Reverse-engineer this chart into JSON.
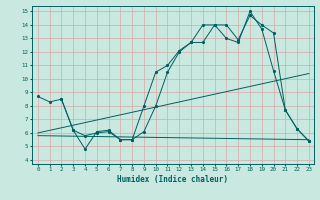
{
  "xlabel": "Humidex (Indice chaleur)",
  "bg_color": "#c8e8e0",
  "line_color": "#006060",
  "grid_color": "#d8a8a8",
  "xlim": [
    -0.5,
    23.4
  ],
  "ylim": [
    3.7,
    15.4
  ],
  "xticks": [
    0,
    1,
    2,
    3,
    4,
    5,
    6,
    7,
    8,
    9,
    10,
    11,
    12,
    13,
    14,
    15,
    16,
    17,
    18,
    19,
    20,
    21,
    22,
    23
  ],
  "yticks": [
    4,
    5,
    6,
    7,
    8,
    9,
    10,
    11,
    12,
    13,
    14,
    15
  ],
  "lines": [
    {
      "x": [
        0,
        1,
        2,
        3,
        4,
        5,
        6,
        7,
        8,
        9,
        10,
        11,
        12,
        13,
        14,
        15,
        16,
        17,
        18,
        19,
        20,
        21,
        22,
        23
      ],
      "y": [
        8.7,
        8.3,
        8.5,
        6.2,
        5.8,
        6.0,
        6.1,
        5.5,
        5.5,
        6.1,
        8.0,
        10.5,
        12.0,
        12.7,
        12.7,
        14.0,
        14.0,
        12.9,
        14.7,
        14.0,
        13.4,
        7.7,
        6.3,
        5.4
      ],
      "marker": true
    },
    {
      "x": [
        0,
        23
      ],
      "y": [
        6.0,
        10.4
      ],
      "marker": false
    },
    {
      "x": [
        0,
        23
      ],
      "y": [
        5.8,
        5.5
      ],
      "marker": false
    },
    {
      "x": [
        2,
        3,
        4,
        5,
        6,
        7,
        8,
        9,
        10,
        11,
        12,
        13,
        14,
        15,
        16,
        17,
        18,
        19,
        20,
        21,
        22,
        23
      ],
      "y": [
        8.5,
        6.2,
        4.8,
        6.1,
        6.2,
        5.5,
        5.5,
        8.0,
        10.5,
        11.0,
        12.1,
        12.7,
        14.0,
        14.0,
        13.0,
        12.7,
        15.0,
        13.7,
        10.6,
        7.7,
        6.3,
        5.4
      ],
      "marker": true
    }
  ]
}
